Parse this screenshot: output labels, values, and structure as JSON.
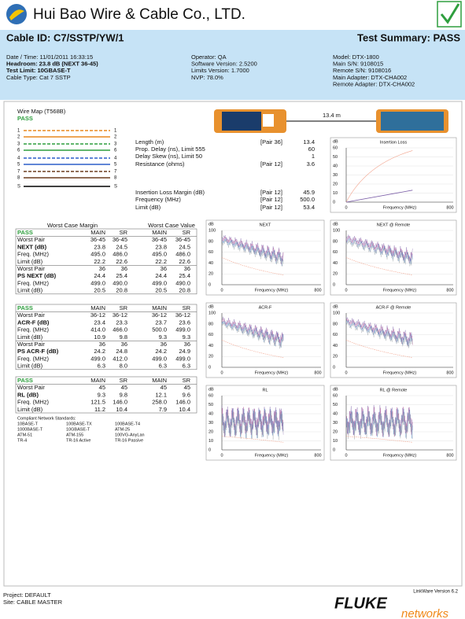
{
  "header": {
    "company": "Hui Bao Wire & Cable Co., LTD.",
    "cable_id": "Cable ID: C7/SSTP/YW/1",
    "test_summary": "Test Summary: PASS"
  },
  "info": {
    "col1": [
      "Date / Time: 11/01/2011 16:33:15",
      "Headroom: 23.8 dB (NEXT 36-45)",
      "Test Limit: 10GBASE-T",
      "Cable Type: Cat 7 SSTP"
    ],
    "col2": [
      "Operator: QA",
      "Software Version: 2.5200",
      "Limits Version: 1.7000",
      "NVP: 78.0%"
    ],
    "col3": [
      "Model: DTX-1800",
      "Main S/N: 9108015",
      "Remote S/N: 9108016",
      "Main Adapter: DTX-CHA002",
      "Remote Adapter: DTX-CHA002"
    ]
  },
  "wire_map": {
    "title": "Wire Map (T568B)",
    "result": "PASS",
    "pins": [
      "1",
      "2",
      "3",
      "6",
      "4",
      "5",
      "7",
      "8",
      "S"
    ]
  },
  "link": {
    "length": "13.4 m"
  },
  "measurements": [
    {
      "label": "Length (m)",
      "pair": "[Pair 36]",
      "value": "13.4"
    },
    {
      "label": "Prop. Delay (ns), Limit 555",
      "value": "60"
    },
    {
      "label": "Delay Skew (ns), Limit 50",
      "value": "1"
    },
    {
      "label": "Resistance (ohms)",
      "pair": "[Pair 12]",
      "value": "3.6"
    },
    {
      "label": "Insertion Loss Margin (dB)",
      "pair": "[Pair 12]",
      "value": "45.9"
    },
    {
      "label": "Frequency (MHz)",
      "pair": "[Pair 12]",
      "value": "500.0"
    },
    {
      "label": "Limit (dB)",
      "pair": "[Pair 12]",
      "value": "53.4"
    }
  ],
  "worst_case": {
    "headers": [
      "Worst Case Margin",
      "Worst Case Value"
    ],
    "sections": [
      {
        "rows": [
          [
            "PASS",
            "MAIN",
            "SR",
            "MAIN",
            "SR"
          ],
          [
            "Worst Pair",
            "36-45",
            "36-45",
            "36-45",
            "36-45"
          ],
          [
            "NEXT (dB)",
            "23.8",
            "24.5",
            "23.8",
            "24.5"
          ],
          [
            "Freq. (MHz)",
            "495.0",
            "486.0",
            "495.0",
            "486.0"
          ],
          [
            "Limit (dB)",
            "22.2",
            "22.6",
            "22.2",
            "22.6"
          ],
          [
            "Worst Pair",
            "36",
            "36",
            "36",
            "36"
          ],
          [
            "PS NEXT (dB)",
            "24.4",
            "25.4",
            "24.4",
            "25.4"
          ],
          [
            "Freq. (MHz)",
            "499.0",
            "490.0",
            "499.0",
            "490.0"
          ],
          [
            "Limit (dB)",
            "20.5",
            "20.8",
            "20.5",
            "20.8"
          ]
        ]
      },
      {
        "rows": [
          [
            "PASS",
            "MAIN",
            "SR",
            "MAIN",
            "SR"
          ],
          [
            "Worst Pair",
            "36-12",
            "36-12",
            "36-12",
            "36-12"
          ],
          [
            "ACR-F (dB)",
            "23.4",
            "23.3",
            "23.7",
            "23.6"
          ],
          [
            "Freq. (MHz)",
            "414.0",
            "466.0",
            "500.0",
            "499.0"
          ],
          [
            "Limit (dB)",
            "10.9",
            "9.8",
            "9.3",
            "9.3"
          ],
          [
            "Worst Pair",
            "36",
            "36",
            "36",
            "36"
          ],
          [
            "PS ACR-F (dB)",
            "24.2",
            "24.8",
            "24.2",
            "24.9"
          ],
          [
            "Freq. (MHz)",
            "499.0",
            "412.0",
            "499.0",
            "499.0"
          ],
          [
            "Limit (dB)",
            "6.3",
            "8.0",
            "6.3",
            "6.3"
          ]
        ]
      },
      {
        "rows": [
          [
            "PASS",
            "MAIN",
            "SR",
            "MAIN",
            "SR"
          ],
          [
            "Worst Pair",
            "45",
            "45",
            "45",
            "45"
          ],
          [
            "RL (dB)",
            "9.3",
            "9.8",
            "12.1",
            "9.6"
          ],
          [
            "Freq. (MHz)",
            "121.5",
            "146.0",
            "258.0",
            "146.0"
          ],
          [
            "Limit (dB)",
            "11.2",
            "10.4",
            "7.9",
            "10.4"
          ]
        ]
      }
    ]
  },
  "standards": {
    "title": "Compliant Network Standards:",
    "rows": [
      [
        "10BASE-T",
        "100BASE-TX",
        "100BASE-T4"
      ],
      [
        "1000BASE-T",
        "10GBASE-T",
        "ATM-25"
      ],
      [
        "ATM-51",
        "ATM-155",
        "100VG-AnyLan"
      ],
      [
        "TR-4",
        "TR-16 Active",
        "TR-16 Passive"
      ]
    ]
  },
  "graphs": [
    {
      "title": "Insertion Loss",
      "unit": "dB",
      "yticks": [
        "60",
        "50",
        "40",
        "30",
        "20",
        "10",
        "0"
      ],
      "x_start": "0",
      "x_label": "Frequency (MHz)",
      "x_end": "800"
    },
    {
      "title": "NEXT",
      "unit": "dB",
      "yticks": [
        "100",
        "80",
        "60",
        "40",
        "20",
        "0"
      ],
      "x_start": "0",
      "x_label": "Frequency (MHz)",
      "x_end": "800"
    },
    {
      "title": "NEXT @ Remote",
      "unit": "dB",
      "yticks": [
        "100",
        "80",
        "60",
        "40",
        "20",
        "0"
      ],
      "x_start": "0",
      "x_label": "Frequency (MHz)",
      "x_end": "800"
    },
    {
      "title": "ACR-F",
      "unit": "dB",
      "yticks": [
        "100",
        "80",
        "60",
        "40",
        "20",
        "0"
      ],
      "x_start": "0",
      "x_label": "Frequency (MHz)",
      "x_end": "800"
    },
    {
      "title": "ACR-F @ Remote",
      "unit": "dB",
      "yticks": [
        "100",
        "80",
        "60",
        "40",
        "20",
        "0"
      ],
      "x_start": "0",
      "x_label": "Frequency (MHz)",
      "x_end": "800"
    },
    {
      "title": "RL",
      "unit": "dB",
      "yticks": [
        "60",
        "50",
        "40",
        "30",
        "20",
        "10",
        "0"
      ],
      "x_start": "0",
      "x_label": "Frequency (MHz)",
      "x_end": "800"
    },
    {
      "title": "RL @ Remote",
      "unit": "dB",
      "yticks": [
        "60",
        "50",
        "40",
        "30",
        "20",
        "10",
        "0"
      ],
      "x_start": "0",
      "x_label": "Frequency (MHz)",
      "x_end": "800"
    }
  ],
  "footer": {
    "project": "Project: DEFAULT",
    "site": "Site: CABLE MASTER",
    "version": "LinkWare Version 6.2",
    "brand": "FLUKE",
    "brand_sub": "networks"
  }
}
